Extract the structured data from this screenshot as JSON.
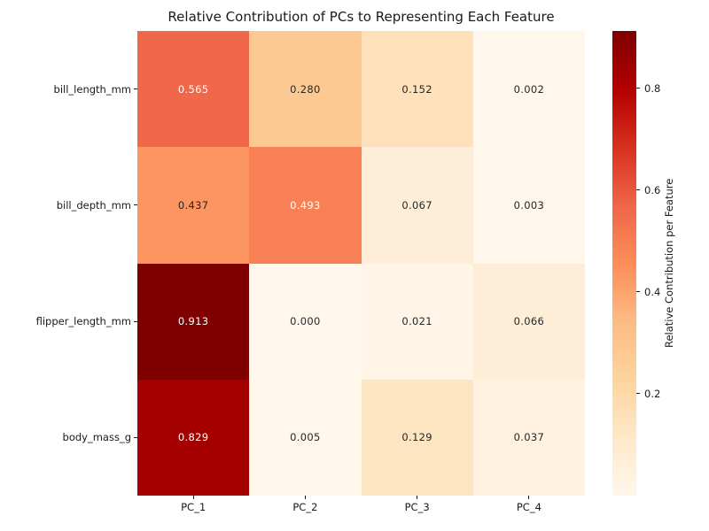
{
  "title": "Relative Contribution of PCs to Representing Each Feature",
  "chart_data": {
    "type": "heatmap",
    "columns": [
      "PC_1",
      "PC_2",
      "PC_3",
      "PC_4"
    ],
    "rows": [
      "bill_length_mm",
      "bill_depth_mm",
      "flipper_length_mm",
      "body_mass_g"
    ],
    "values": [
      [
        0.565,
        0.28,
        0.152,
        0.002
      ],
      [
        0.437,
        0.493,
        0.067,
        0.003
      ],
      [
        0.913,
        0.0,
        0.021,
        0.066
      ],
      [
        0.829,
        0.005,
        0.129,
        0.037
      ]
    ],
    "cell_colors": [
      [
        "#f06749",
        "#fdc992",
        "#fee1ba",
        "#fff7ec"
      ],
      [
        "#fc9560",
        "#f88054",
        "#feeed7",
        "#fff7ec"
      ],
      [
        "#7f0000",
        "#fff7ec",
        "#fff4e6",
        "#feeed7"
      ],
      [
        "#a50000",
        "#fff7ec",
        "#fee5c2",
        "#fff2e0"
      ]
    ],
    "text_colors": [
      [
        "#ffffff",
        "#262626",
        "#262626",
        "#262626"
      ],
      [
        "#262626",
        "#ffffff",
        "#262626",
        "#262626"
      ],
      [
        "#ffffff",
        "#262626",
        "#262626",
        "#262626"
      ],
      [
        "#ffffff",
        "#262626",
        "#262626",
        "#262626"
      ]
    ],
    "vmin": 0.0,
    "vmax": 0.913,
    "grid": false,
    "colorbar": {
      "label": "Relative Contribution per Feature",
      "position": "right",
      "ticks": [
        "0.2",
        "0.4",
        "0.6",
        "0.8"
      ],
      "tick_values": [
        0.2,
        0.4,
        0.6,
        0.8
      ],
      "gradient_stops": [
        "#fff7ec",
        "#fee8c8",
        "#fdd49e",
        "#fdbb84",
        "#fc8d59",
        "#ef6548",
        "#d7301f",
        "#b30000",
        "#7f0000"
      ]
    }
  }
}
